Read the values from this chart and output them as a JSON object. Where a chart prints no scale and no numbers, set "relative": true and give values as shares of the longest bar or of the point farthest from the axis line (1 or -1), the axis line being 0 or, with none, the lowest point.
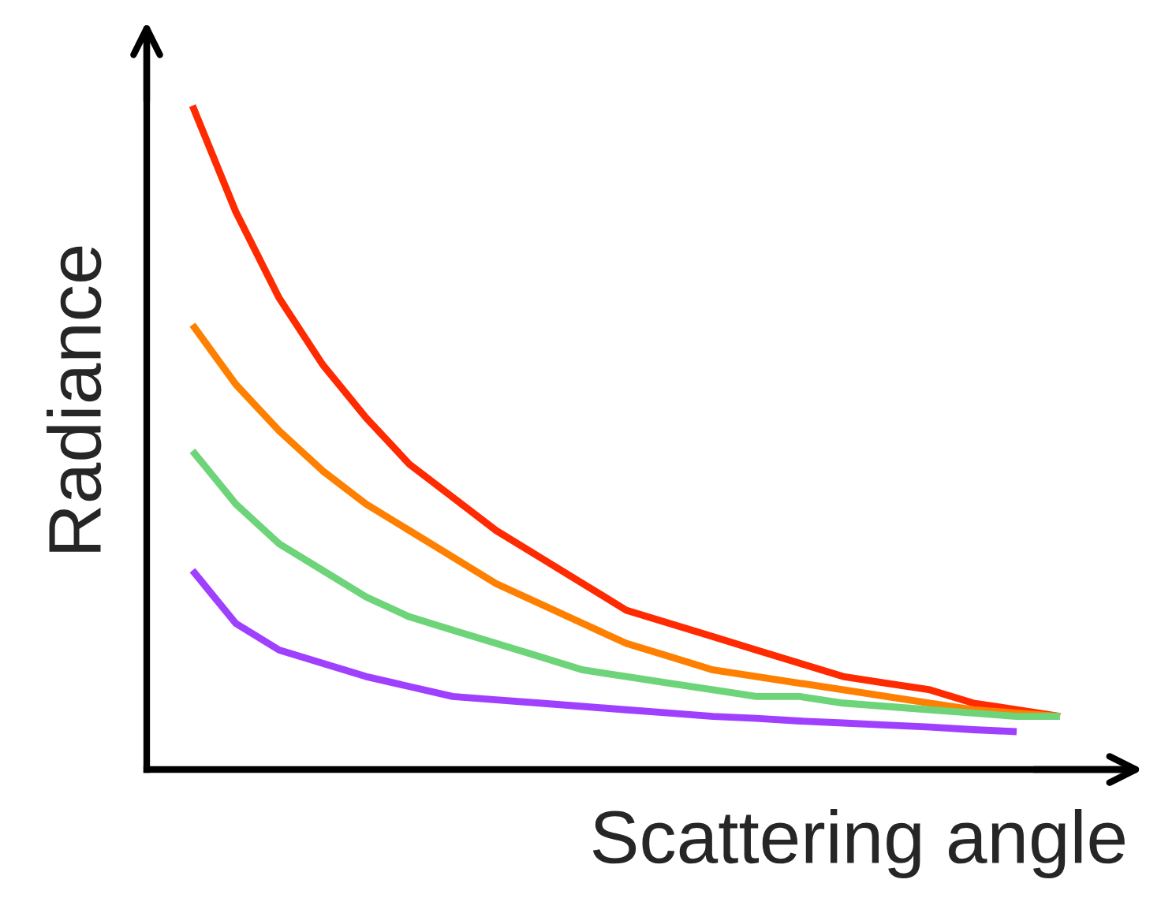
{
  "chart_data": {
    "type": "line",
    "relative": true,
    "xlabel": "Scattering angle",
    "ylabel": "Radiance",
    "tick_labels": false,
    "grid": false,
    "legend": false,
    "marker": "none",
    "line_style": "solid",
    "categories": [
      null,
      null,
      null,
      null,
      null,
      null,
      null,
      null,
      null,
      null,
      null,
      null,
      null,
      null,
      null,
      null,
      null,
      null,
      null,
      null,
      null
    ],
    "series": [
      {
        "color": "#ff2a00",
        "values": [
          1.0,
          0.84,
          0.71,
          0.61,
          0.53,
          0.46,
          0.41,
          0.36,
          0.32,
          0.28,
          0.24,
          0.22,
          0.2,
          0.18,
          0.16,
          0.14,
          0.13,
          0.12,
          0.1,
          0.09,
          0.08
        ]
      },
      {
        "color": "#ff8000",
        "values": [
          0.67,
          0.58,
          0.51,
          0.45,
          0.4,
          0.36,
          0.32,
          0.28,
          0.25,
          0.22,
          0.19,
          0.17,
          0.15,
          0.14,
          0.13,
          0.12,
          0.11,
          0.1,
          0.09,
          0.085,
          0.08
        ]
      },
      {
        "color": "#6ed47a",
        "values": [
          0.48,
          0.4,
          0.34,
          0.3,
          0.26,
          0.23,
          0.21,
          0.19,
          0.17,
          0.15,
          0.14,
          0.13,
          0.12,
          0.11,
          0.11,
          0.1,
          0.095,
          0.09,
          0.085,
          0.08,
          0.08
        ]
      },
      {
        "color": "#a040ff",
        "values": [
          0.3,
          0.22,
          0.18,
          0.16,
          0.14,
          0.125,
          0.11,
          0.105,
          0.1,
          0.095,
          0.09,
          0.085,
          0.08,
          0.077,
          0.073,
          0.07,
          0.067,
          0.064,
          0.06,
          0.057,
          null
        ]
      }
    ]
  }
}
